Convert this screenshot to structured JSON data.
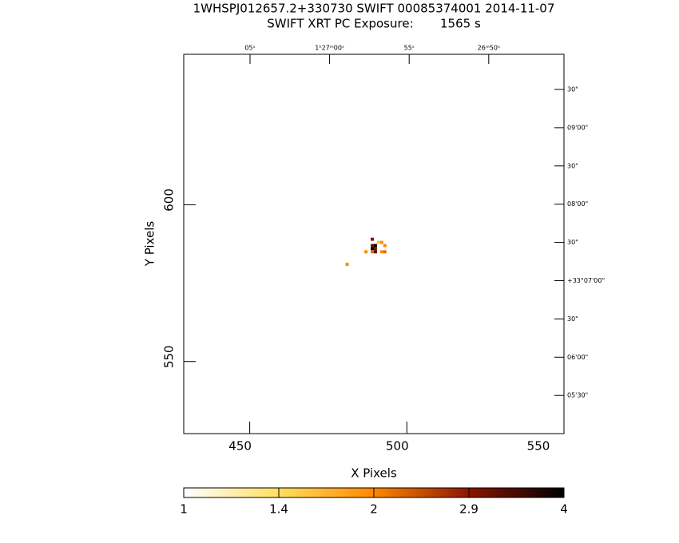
{
  "chart_data": {
    "type": "image",
    "title": "1WHSPJ012657.2+330730 SWIFT 00085374001 2014-11-07",
    "subtitle": "SWIFT XRT PC Exposure:       1565 s",
    "xlabel": "X Pixels",
    "ylabel": "Y Pixels",
    "xlim": [
      429,
      550
    ],
    "ylim": [
      527,
      648
    ],
    "xticks": [
      450,
      500,
      550
    ],
    "yticks": [
      550,
      600
    ],
    "top_labels": [
      "05ˢ",
      "1ʰ27ᵐ00ˢ",
      "55ˢ",
      "26ᵐ50ˢ"
    ],
    "right_labels": [
      "30\"",
      "09'00\"",
      "30\"",
      "08'00\"",
      "30\"",
      "+33°07'00\"",
      "30\"",
      "06'00\"",
      "05'30\""
    ],
    "pixels": {
      "x": [
        481,
        489,
        489,
        490,
        491,
        492,
        489,
        490,
        493,
        487,
        489,
        490,
        492,
        493
      ],
      "y": [
        581,
        589,
        587,
        587,
        588,
        588,
        586,
        586,
        587,
        585,
        585,
        585,
        585,
        585
      ],
      "values": [
        2,
        3,
        3,
        4,
        1.6,
        2,
        4,
        3,
        2,
        2,
        2.2,
        3.3,
        2,
        2.2
      ]
    },
    "colorbar": {
      "ticks": [
        1,
        1.4,
        2,
        2.9,
        4
      ],
      "colors": [
        "#ffffff",
        "#ffe060",
        "#ff8800",
        "#8b1500",
        "#000000"
      ]
    }
  }
}
